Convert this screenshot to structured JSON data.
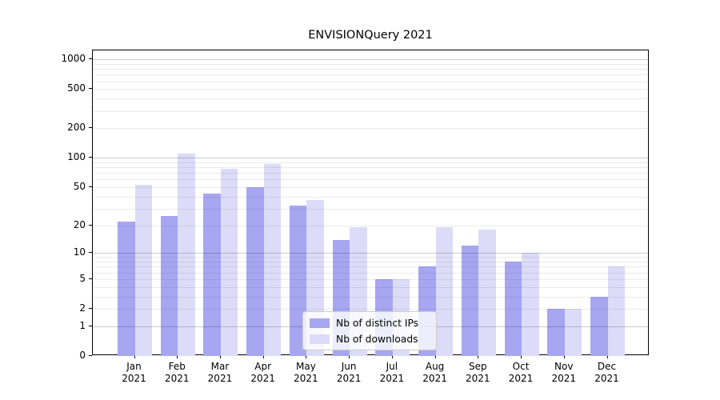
{
  "chart_data": {
    "type": "bar",
    "title": "ENVISIONQuery 2021",
    "months": [
      "Jan",
      "Feb",
      "Mar",
      "Apr",
      "May",
      "Jun",
      "Jul",
      "Aug",
      "Sep",
      "Oct",
      "Nov",
      "Dec"
    ],
    "year": "2021",
    "series": [
      {
        "name": "Nb of distinct IPs",
        "color": "#a6a6f1",
        "values": [
          22,
          25,
          43,
          50,
          32,
          14,
          5,
          7,
          12,
          8,
          2,
          3
        ]
      },
      {
        "name": "Nb of downloads",
        "color": "#dcdcf8",
        "values": [
          53,
          110,
          78,
          87,
          37,
          19,
          5,
          19,
          18,
          10,
          2,
          7
        ]
      }
    ],
    "yscale": "log10(1+y)",
    "yticks": [
      0,
      1,
      2,
      5,
      10,
      20,
      50,
      100,
      200,
      500,
      1000
    ],
    "major_gridlines": [
      1,
      10,
      100,
      1000
    ],
    "ylim": [
      0,
      1234
    ],
    "xlabel": "",
    "ylabel": "",
    "grid": "on",
    "legend_position": "lower center"
  },
  "style": {
    "background": "#ffffff",
    "spine_color": "#000000",
    "major_grid_color": "#c9c9c9",
    "minor_grid_color": "#e9e9e9"
  }
}
